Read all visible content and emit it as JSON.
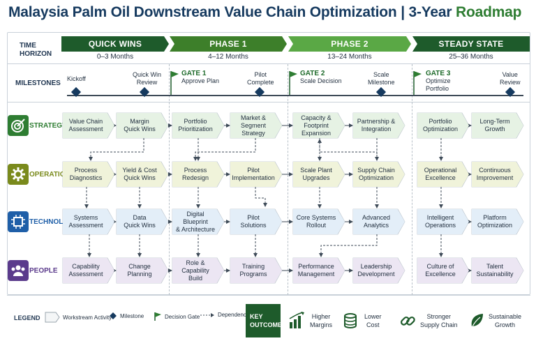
{
  "title": {
    "main": "Malaysia Palm Oil Downstream Value Chain Optimization | 3-Year",
    "accent": "Roadmap"
  },
  "row_headers": {
    "time_horizon_1": "TIME",
    "time_horizon_2": "HORIZON",
    "milestones": "MILESTONES"
  },
  "phases": [
    {
      "label": "QUICK WINS",
      "duration": "0–3 Months",
      "color": "#1e5b2b"
    },
    {
      "label": "PHASE 1",
      "duration": "4–12 Months",
      "color": "#3d7f2a"
    },
    {
      "label": "PHASE 2",
      "duration": "13–24 Months",
      "color": "#5aa845"
    },
    {
      "label": "STEADY STATE",
      "duration": "25–36 Months",
      "color": "#1e5b2b"
    }
  ],
  "milestones": {
    "kickoff": "Kickoff",
    "quick_win_1": "Quick Win",
    "quick_win_2": "Review",
    "pilot_1": "Pilot",
    "pilot_2": "Complete",
    "scale_1": "Scale",
    "scale_2": "Milestone",
    "value_1": "Value",
    "value_2": "Review"
  },
  "gates": [
    {
      "name": "GATE 1",
      "desc1": "Approve Plan",
      "desc2": ""
    },
    {
      "name": "GATE 2",
      "desc1": "Scale Decision",
      "desc2": ""
    },
    {
      "name": "GATE 3",
      "desc1": "Optimize",
      "desc2": "Portfolio"
    }
  ],
  "lanes": [
    {
      "label": "STRATEGY",
      "color": "#2e7d32",
      "icon": "target-icon",
      "activities": [
        [
          "Value Chain",
          "Assessment"
        ],
        [
          "Margin",
          "Quick Wins"
        ],
        [
          "Portfolio",
          "Prioritization"
        ],
        [
          "Market & Segment",
          "Strategy"
        ],
        [
          "Capacity & Footprint",
          "Expansion"
        ],
        [
          "Partnership &",
          "Integration"
        ],
        [
          "Portfolio",
          "Optimization"
        ],
        [
          "Long-Term",
          "Growth"
        ]
      ]
    },
    {
      "label": "OPERATIONS",
      "color": "#7a8a1c",
      "icon": "gear-icon",
      "activities": [
        [
          "Process",
          "Diagnostics"
        ],
        [
          "Yield & Cost",
          "Quick Wins"
        ],
        [
          "Process",
          "Redesign"
        ],
        [
          "Pilot",
          "Implementation"
        ],
        [
          "Scale Plant",
          "Upgrades"
        ],
        [
          "Supply Chain",
          "Optimization"
        ],
        [
          "Operational",
          "Excellence"
        ],
        [
          "Continuous",
          "Improvement"
        ]
      ]
    },
    {
      "label": "TECHNOLOGY",
      "color": "#1f5fa8",
      "icon": "chip-icon",
      "activities": [
        [
          "Systems",
          "Assessment"
        ],
        [
          "Data",
          "Quick Wins"
        ],
        [
          "Digital Blueprint",
          "& Architecture"
        ],
        [
          "Pilot",
          "Solutions"
        ],
        [
          "Core Systems",
          "Rollout"
        ],
        [
          "Advanced",
          "Analytics"
        ],
        [
          "Intelligent",
          "Operations"
        ],
        [
          "Platform",
          "Optimization"
        ]
      ]
    },
    {
      "label": "PEOPLE",
      "color": "#5b3b8c",
      "icon": "people-icon",
      "activities": [
        [
          "Capability",
          "Assessment"
        ],
        [
          "Change",
          "Planning"
        ],
        [
          "Role & Capability",
          "Build"
        ],
        [
          "Training",
          "Programs"
        ],
        [
          "Performance",
          "Management"
        ],
        [
          "Leadership",
          "Development"
        ],
        [
          "Culture of",
          "Excellence"
        ],
        [
          "Talent",
          "Sustainability"
        ]
      ]
    }
  ],
  "legend": {
    "label": "LEGEND",
    "workstream": "Workstream Activity",
    "milestone": "Milestone",
    "gate": "Decision Gate",
    "dependency": "Dependency"
  },
  "key_outcomes": {
    "label_1": "KEY",
    "label_2": "OUTCOMES",
    "items": [
      {
        "l1": "Higher",
        "l2": "Margins",
        "icon": "bar-chart-icon"
      },
      {
        "l1": "Lower",
        "l2": "Cost",
        "icon": "coins-icon"
      },
      {
        "l1": "Stronger",
        "l2": "Supply Chain",
        "icon": "chain-link-icon"
      },
      {
        "l1": "Sustainable",
        "l2": "Growth",
        "icon": "leaf-icon"
      }
    ]
  }
}
